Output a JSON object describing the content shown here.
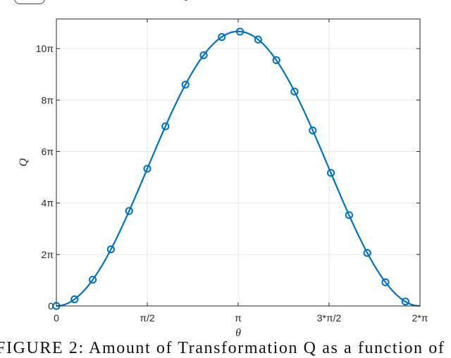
{
  "chart_data": {
    "type": "line",
    "title": "",
    "xlabel": "θ",
    "ylabel": "Q",
    "x_unit": "π",
    "y_unit": "π",
    "xlim": [
      0,
      2
    ],
    "ylim": [
      0,
      11.15
    ],
    "grid": true,
    "x_ticks": [
      {
        "value": 0,
        "label": "0"
      },
      {
        "value": 0.5,
        "label": "π/2"
      },
      {
        "value": 1,
        "label": "π"
      },
      {
        "value": 1.5,
        "label": "3*π/2"
      },
      {
        "value": 2,
        "label": "2*π"
      }
    ],
    "y_ticks": [
      {
        "value": 0,
        "label": "0"
      },
      {
        "value": 2,
        "label": "2π"
      },
      {
        "value": 4,
        "label": "4π"
      },
      {
        "value": 6,
        "label": "6π"
      },
      {
        "value": 8,
        "label": "8π"
      },
      {
        "value": 10,
        "label": "10π"
      }
    ],
    "series": [
      {
        "style": "line-with-circle-markers",
        "color": "#0072BD",
        "curve_formula": "Q = (16/3)·(1 − cos θ)·π",
        "markers": {
          "x": [
            0,
            0.1,
            0.2,
            0.3,
            0.4,
            0.5,
            0.6,
            0.71,
            0.81,
            0.91,
            1.01,
            1.11,
            1.21,
            1.31,
            1.41,
            1.51,
            1.61,
            1.71,
            1.81,
            1.92
          ],
          "y": [
            0,
            0.26,
            1.02,
            2.2,
            3.69,
            5.33,
            6.98,
            8.6,
            9.74,
            10.45,
            10.66,
            10.35,
            9.55,
            8.33,
            6.82,
            5.17,
            3.53,
            2.06,
            0.92,
            0.17
          ]
        }
      }
    ]
  },
  "caption": "FIGURE 2: Amount of Transformation Q as a function of"
}
